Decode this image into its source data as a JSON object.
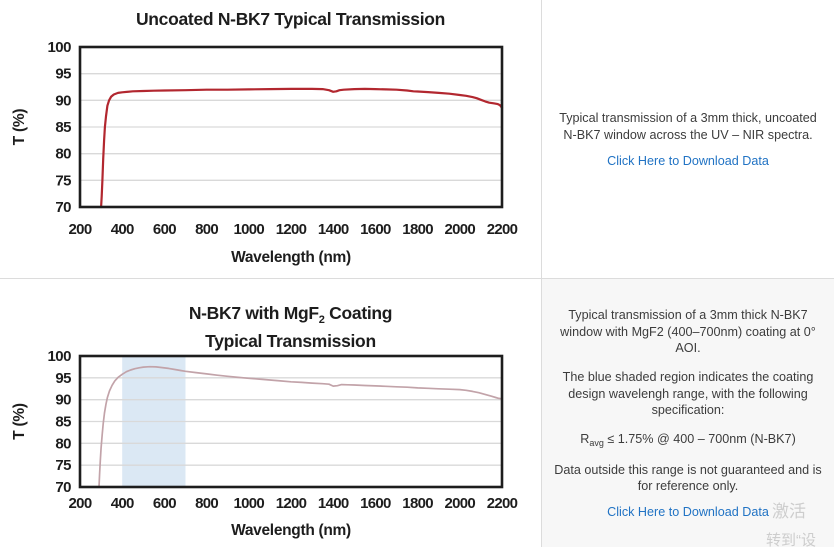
{
  "colors": {
    "uncoated_curve": "#b2272f",
    "coated_curve": "#c2a3a9",
    "shaded_region": "#dbe8f4",
    "gridline": "#d9d9d9",
    "axis": "#1d1d1d",
    "link": "#2173c4",
    "panel_text": "#3c3c3c",
    "divider": "#dcdcdc",
    "bottom_panel_bg": "#f7f7f7"
  },
  "chart_data": [
    {
      "type": "line",
      "title": "Uncoated N-BK7 Typical Transmission",
      "xlabel": "Wavelength (nm)",
      "ylabel": "T (%)",
      "xlim": [
        200,
        2200
      ],
      "ylim": [
        70,
        100
      ],
      "x_ticks": [
        200,
        400,
        600,
        800,
        1000,
        1200,
        1400,
        1600,
        1800,
        2000,
        2200
      ],
      "y_ticks": [
        70,
        75,
        80,
        85,
        90,
        95,
        100
      ],
      "grid": "horizontal",
      "legend": "none",
      "series": [
        {
          "name": "uncoated-n-bk7-transmission",
          "color": "#b2272f",
          "width": 2.2,
          "points": [
            [
              300,
              70
            ],
            [
              303,
              72
            ],
            [
              306,
              75
            ],
            [
              310,
              79
            ],
            [
              314,
              82.5
            ],
            [
              318,
              85
            ],
            [
              323,
              87
            ],
            [
              330,
              89
            ],
            [
              338,
              90
            ],
            [
              348,
              90.7
            ],
            [
              360,
              91.1
            ],
            [
              380,
              91.4
            ],
            [
              400,
              91.5
            ],
            [
              450,
              91.7
            ],
            [
              500,
              91.75
            ],
            [
              550,
              91.8
            ],
            [
              600,
              91.85
            ],
            [
              700,
              91.9
            ],
            [
              800,
              92.0
            ],
            [
              900,
              92.0
            ],
            [
              1000,
              92.05
            ],
            [
              1100,
              92.1
            ],
            [
              1200,
              92.15
            ],
            [
              1300,
              92.15
            ],
            [
              1350,
              92.1
            ],
            [
              1380,
              91.9
            ],
            [
              1400,
              91.6
            ],
            [
              1415,
              91.7
            ],
            [
              1430,
              91.9
            ],
            [
              1450,
              92.0
            ],
            [
              1500,
              92.1
            ],
            [
              1550,
              92.15
            ],
            [
              1600,
              92.1
            ],
            [
              1650,
              92.05
            ],
            [
              1700,
              92.0
            ],
            [
              1750,
              91.85
            ],
            [
              1780,
              91.7
            ],
            [
              1800,
              91.65
            ],
            [
              1850,
              91.55
            ],
            [
              1900,
              91.4
            ],
            [
              1950,
              91.25
            ],
            [
              2000,
              91.0
            ],
            [
              2030,
              90.85
            ],
            [
              2060,
              90.6
            ],
            [
              2080,
              90.4
            ],
            [
              2100,
              90.1
            ],
            [
              2120,
              89.8
            ],
            [
              2140,
              89.55
            ],
            [
              2160,
              89.45
            ],
            [
              2180,
              89.3
            ],
            [
              2190,
              89.1
            ],
            [
              2200,
              88.6
            ]
          ]
        }
      ]
    },
    {
      "type": "line",
      "title": "N-BK7 with MgF2 Coating Typical Transmission",
      "title_parts": {
        "line1_pre": "N-BK7 with MgF",
        "line1_sub": "2",
        "line1_post": " Coating",
        "line2": "Typical Transmission"
      },
      "xlabel": "Wavelength (nm)",
      "ylabel": "T (%)",
      "xlim": [
        200,
        2200
      ],
      "ylim": [
        70,
        100
      ],
      "x_ticks": [
        200,
        400,
        600,
        800,
        1000,
        1200,
        1400,
        1600,
        1800,
        2000,
        2200
      ],
      "y_ticks": [
        70,
        75,
        80,
        85,
        90,
        95,
        100
      ],
      "grid": "horizontal",
      "legend": "none",
      "shaded_region": {
        "x0": 400,
        "x1": 700,
        "color": "#dbe8f4",
        "meaning": "coating design wavelength range"
      },
      "series": [
        {
          "name": "n-bk7-mgf2-coated-transmission",
          "color": "#c2a3a9",
          "width": 1.7,
          "points": [
            [
              290,
              70
            ],
            [
              293,
              73
            ],
            [
              296,
              76
            ],
            [
              300,
              79
            ],
            [
              305,
              82
            ],
            [
              310,
              84.5
            ],
            [
              316,
              87
            ],
            [
              323,
              89
            ],
            [
              330,
              90.5
            ],
            [
              340,
              92
            ],
            [
              352,
              93.3
            ],
            [
              365,
              94.3
            ],
            [
              380,
              95.1
            ],
            [
              400,
              95.8
            ],
            [
              420,
              96.4
            ],
            [
              440,
              96.8
            ],
            [
              460,
              97.1
            ],
            [
              480,
              97.3
            ],
            [
              500,
              97.45
            ],
            [
              530,
              97.55
            ],
            [
              560,
              97.5
            ],
            [
              590,
              97.35
            ],
            [
              620,
              97.15
            ],
            [
              650,
              96.9
            ],
            [
              680,
              96.65
            ],
            [
              700,
              96.5
            ],
            [
              750,
              96.2
            ],
            [
              800,
              95.9
            ],
            [
              850,
              95.6
            ],
            [
              900,
              95.35
            ],
            [
              950,
              95.1
            ],
            [
              1000,
              94.9
            ],
            [
              1050,
              94.7
            ],
            [
              1100,
              94.5
            ],
            [
              1150,
              94.3
            ],
            [
              1200,
              94.1
            ],
            [
              1250,
              93.95
            ],
            [
              1300,
              93.8
            ],
            [
              1350,
              93.65
            ],
            [
              1380,
              93.55
            ],
            [
              1400,
              93.1
            ],
            [
              1420,
              93.2
            ],
            [
              1440,
              93.45
            ],
            [
              1470,
              93.4
            ],
            [
              1500,
              93.35
            ],
            [
              1550,
              93.25
            ],
            [
              1600,
              93.15
            ],
            [
              1650,
              93.05
            ],
            [
              1700,
              92.95
            ],
            [
              1750,
              92.85
            ],
            [
              1800,
              92.7
            ],
            [
              1850,
              92.6
            ],
            [
              1900,
              92.5
            ],
            [
              1950,
              92.4
            ],
            [
              2000,
              92.3
            ],
            [
              2030,
              92.15
            ],
            [
              2060,
              91.9
            ],
            [
              2090,
              91.6
            ],
            [
              2120,
              91.2
            ],
            [
              2150,
              90.8
            ],
            [
              2170,
              90.5
            ],
            [
              2185,
              90.3
            ],
            [
              2200,
              90.2
            ]
          ]
        }
      ]
    }
  ],
  "panels": {
    "top": {
      "paragraph": "Typical transmission of a 3mm thick, uncoated N-BK7 window across the UV – NIR spectra.",
      "link": "Click Here to Download Data"
    },
    "bottom": {
      "p1": "Typical transmission of a 3mm thick N-BK7 window with MgF2 (400–700nm) coating at 0° AOI.",
      "p2": "The blue shaded region indicates the coating design wavelengh range, with the following specification:",
      "spec_pre": "R",
      "spec_sub": "avg",
      "spec_post": " ≤ 1.75% @ 400 – 700nm (N-BK7)",
      "p4": "Data outside this range is not guaranteed and is for reference only.",
      "link": "Click Here to Download Data"
    }
  },
  "watermark": {
    "line1": "激活",
    "line2": "转到“设"
  }
}
